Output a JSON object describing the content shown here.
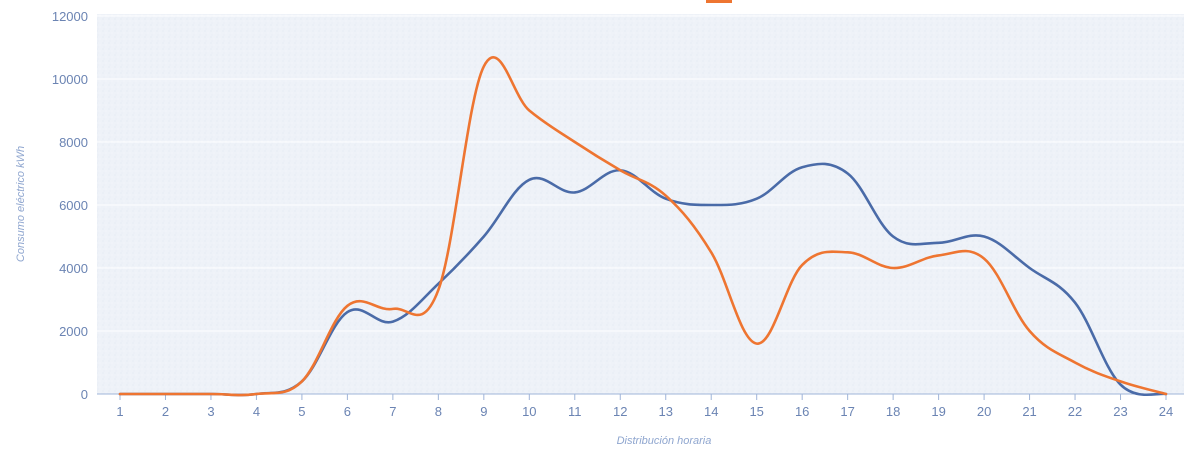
{
  "chart_data": {
    "type": "line",
    "title": "",
    "xlabel": "Distribución horaria",
    "ylabel": "Consumo eléctrico kWh",
    "ylim": [
      0,
      12000
    ],
    "yticks": [
      "0",
      "2000",
      "4000",
      "6000",
      "8000",
      "10000",
      "12000"
    ],
    "categories": [
      "1",
      "2",
      "3",
      "4",
      "5",
      "6",
      "7",
      "8",
      "9",
      "10",
      "11",
      "12",
      "13",
      "14",
      "15",
      "16",
      "17",
      "18",
      "19",
      "20",
      "21",
      "22",
      "23",
      "24"
    ],
    "grid": true,
    "legend": "top (partially visible)",
    "series": [
      {
        "color": "#4a6ba8",
        "values": [
          0,
          0,
          0,
          0,
          400,
          2600,
          2300,
          3500,
          5000,
          6800,
          6400,
          7100,
          6200,
          6000,
          6200,
          7200,
          7000,
          5000,
          4800,
          5000,
          4000,
          2900,
          300,
          0
        ]
      },
      {
        "color": "#ee7531",
        "values": [
          0,
          0,
          0,
          0,
          400,
          2800,
          2700,
          3300,
          10400,
          9000,
          8000,
          7100,
          6300,
          4500,
          1600,
          4100,
          4500,
          4000,
          4400,
          4300,
          2000,
          1000,
          400,
          0
        ]
      }
    ]
  }
}
